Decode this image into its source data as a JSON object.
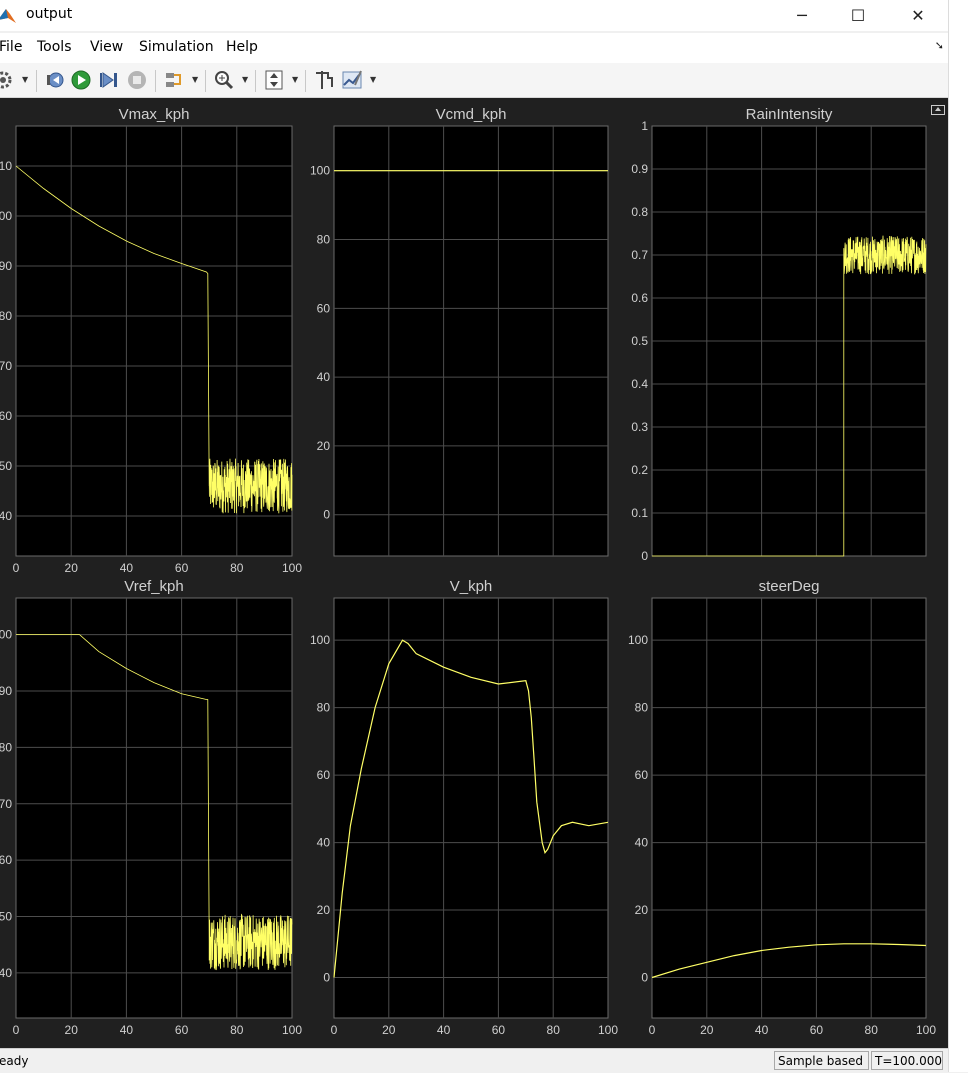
{
  "window": {
    "title": "output",
    "minimize_glyph": "─",
    "maximize_glyph": "☐",
    "close_glyph": "✕"
  },
  "menu": {
    "items": [
      "File",
      "Tools",
      "View",
      "Simulation",
      "Help"
    ]
  },
  "toolbar": {
    "icons": [
      "settings-icon",
      "step-back-icon",
      "run-icon",
      "step-forward-icon",
      "stop-icon",
      "highlight-icon",
      "zoom-icon",
      "autoscale-icon",
      "cursor-measure-icon",
      "style-icon"
    ]
  },
  "status": {
    "text": "eady",
    "mode": "Sample based",
    "time": "T=100.000"
  },
  "colors": {
    "trace": "#ffff66",
    "axes_bg": "#000000",
    "figure_bg": "#202020",
    "grid": "#4d4d4d",
    "text": "#d0d0d0"
  },
  "chart_data": [
    {
      "type": "line",
      "title": "Vmax_kph",
      "xlim": [
        0,
        100
      ],
      "ylim": [
        32,
        118
      ],
      "x_ticks": [
        "0",
        "20",
        "40",
        "60",
        "80",
        "100"
      ],
      "y_ticks": [
        "10",
        "00",
        "90",
        "80",
        "70",
        "60",
        "50",
        "40"
      ],
      "y_tick_values": [
        110,
        100,
        90,
        80,
        70,
        60,
        50,
        40
      ],
      "x": [
        0,
        10,
        20,
        30,
        40,
        50,
        60,
        69,
        69.5,
        70,
        100
      ],
      "y": [
        110,
        105.5,
        101.5,
        98,
        95,
        92.5,
        90.5,
        88.8,
        88.5,
        46,
        46
      ],
      "noise": {
        "x_start": 70,
        "x_end": 100,
        "amplitude": 5.5
      }
    },
    {
      "type": "line",
      "title": "Vcmd_kph",
      "xlim": [
        0,
        100
      ],
      "ylim": [
        -12,
        113
      ],
      "x_ticks": [],
      "y_ticks": [
        "100",
        "80",
        "60",
        "40",
        "20",
        "0"
      ],
      "y_tick_values": [
        100,
        80,
        60,
        40,
        20,
        0
      ],
      "x": [
        0,
        100
      ],
      "y": [
        100,
        100
      ]
    },
    {
      "type": "line",
      "title": "RainIntensity",
      "xlim": [
        0,
        100
      ],
      "ylim": [
        0,
        1
      ],
      "x_ticks": [],
      "y_ticks": [
        "1",
        "0.9",
        "0.8",
        "0.7",
        "0.6",
        "0.5",
        "0.4",
        "0.3",
        "0.2",
        "0.1",
        "0"
      ],
      "y_tick_values": [
        1,
        0.9,
        0.8,
        0.7,
        0.6,
        0.5,
        0.4,
        0.3,
        0.2,
        0.1,
        0
      ],
      "x": [
        0,
        70,
        70.1,
        100
      ],
      "y": [
        0,
        0,
        0.7,
        0.7
      ],
      "noise": {
        "x_start": 70,
        "x_end": 100,
        "amplitude": 0.045
      }
    },
    {
      "type": "line",
      "title": "Vref_kph",
      "xlim": [
        0,
        100
      ],
      "ylim": [
        32,
        106.5
      ],
      "x_ticks": [
        "0",
        "20",
        "40",
        "60",
        "80",
        "100"
      ],
      "y_ticks": [
        "00",
        "90",
        "80",
        "70",
        "60",
        "50",
        "40"
      ],
      "y_tick_values": [
        100,
        90,
        80,
        70,
        60,
        50,
        40
      ],
      "x": [
        0,
        23,
        30,
        40,
        50,
        60,
        69,
        69.5,
        70,
        100
      ],
      "y": [
        100,
        100,
        97,
        94,
        91.5,
        89.5,
        88.5,
        88.5,
        45.5,
        45.5
      ],
      "noise": {
        "x_start": 70,
        "x_end": 100,
        "amplitude": 5
      }
    },
    {
      "type": "line",
      "title": "V_kph",
      "xlim": [
        0,
        100
      ],
      "ylim": [
        -12,
        112.5
      ],
      "x_ticks": [
        "0",
        "20",
        "40",
        "60",
        "80",
        "100"
      ],
      "y_ticks": [
        "100",
        "80",
        "60",
        "40",
        "20",
        "0"
      ],
      "y_tick_values": [
        100,
        80,
        60,
        40,
        20,
        0
      ],
      "x": [
        0,
        3,
        6,
        10,
        15,
        20,
        25,
        27,
        30,
        40,
        50,
        60,
        70,
        71,
        72,
        73,
        74,
        76,
        77,
        78,
        80,
        83,
        87,
        93,
        100
      ],
      "y": [
        0,
        25,
        45,
        62,
        80,
        93,
        100,
        99,
        96,
        92,
        89,
        87,
        88,
        85,
        77,
        65,
        52,
        40,
        37,
        38,
        42,
        45,
        46,
        45,
        46
      ]
    },
    {
      "type": "line",
      "title": "steerDeg",
      "xlim": [
        0,
        100
      ],
      "ylim": [
        -12,
        112.5
      ],
      "x_ticks": [
        "0",
        "20",
        "40",
        "60",
        "80",
        "100"
      ],
      "y_ticks": [
        "100",
        "80",
        "60",
        "40",
        "20",
        "0"
      ],
      "y_tick_values": [
        100,
        80,
        60,
        40,
        20,
        0
      ],
      "x": [
        0,
        10,
        20,
        30,
        40,
        50,
        60,
        70,
        80,
        90,
        100
      ],
      "y": [
        0,
        2.5,
        4.5,
        6.5,
        8,
        9,
        9.7,
        10,
        10,
        9.8,
        9.5
      ]
    }
  ]
}
